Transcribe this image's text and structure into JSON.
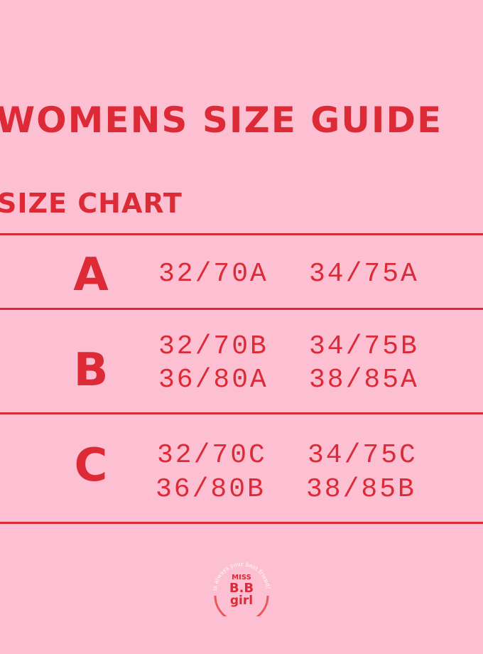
{
  "title": "WOMENS SIZE GUIDE",
  "subtitle": "SIZE CHART",
  "rows": [
    {
      "cup": "A",
      "sizes": [
        "32/70A",
        "34/75A"
      ]
    },
    {
      "cup": "B",
      "sizes": [
        "32/70B",
        "34/75B",
        "36/80A",
        "38/85A"
      ]
    },
    {
      "cup": "C",
      "sizes": [
        "32/70C",
        "34/75C",
        "36/80B",
        "38/85B"
      ]
    }
  ],
  "logo": {
    "arc_text": "is always your best friend!",
    "line1": "MISS",
    "line2": "B.B",
    "line3": "girl"
  },
  "colors": {
    "background": "#fdbfd2",
    "accent": "#dc2a36"
  }
}
